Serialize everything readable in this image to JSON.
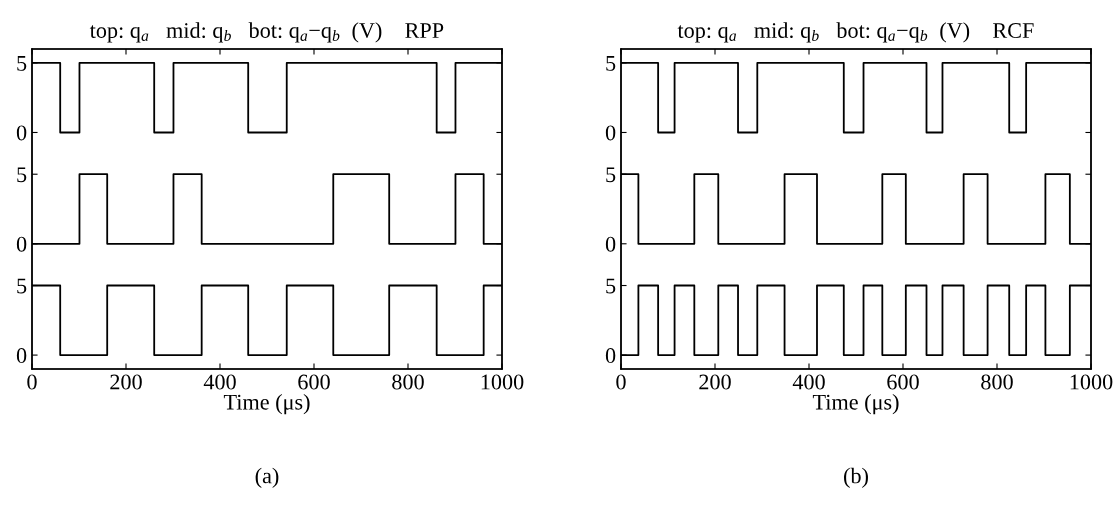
{
  "chart_data": [
    {
      "type": "step",
      "title": "top: q$_{a}$   mid: q$_{b}$   bot: q$_{a}$−q$_{b}$  (V)    RPP",
      "xlabel": "Time (μs)",
      "annotations": [
        "(a)"
      ],
      "xlim": [
        0,
        1000
      ],
      "xticks": [
        0,
        200,
        400,
        600,
        800,
        1000
      ],
      "ylim": [
        -1,
        22
      ],
      "yticks": [
        0,
        5
      ],
      "y2lim": [
        -9,
        14
      ],
      "y2ticks": [
        0,
        5
      ],
      "y3lim": [
        -17,
        6
      ],
      "y3ticks": [
        0,
        5
      ],
      "series": [
        {
          "axis": "y3",
          "color": "#000000",
          "x": [
            0,
            60,
            101,
            260,
            301,
            460,
            542,
            861,
            901,
            1000
          ],
          "values": [
            5,
            0,
            5,
            0,
            5,
            0,
            5,
            0,
            5,
            5
          ]
        },
        {
          "axis": "y2",
          "color": "#000000",
          "x": [
            0,
            101,
            160,
            301,
            361,
            641,
            760,
            901,
            961,
            1000
          ],
          "values": [
            0,
            5,
            0,
            5,
            0,
            5,
            0,
            5,
            0,
            0
          ]
        },
        {
          "axis": "y",
          "color": "#000000",
          "x": [
            0,
            60,
            160,
            260,
            361,
            460,
            542,
            641,
            760,
            861,
            961,
            1000
          ],
          "values": [
            5,
            0,
            5,
            0,
            5,
            0,
            5,
            0,
            5,
            0,
            5,
            5
          ]
        }
      ]
    },
    {
      "type": "step",
      "title": "top: q$_{a}$   mid: q$_{b}$   bot: q$_{a}$−q$_{b}$  (V)    RCF",
      "xlabel": "Time (μs)",
      "annotations": [
        "(b)"
      ],
      "xlim": [
        0,
        1000
      ],
      "xticks": [
        0,
        200,
        400,
        600,
        800,
        1000
      ],
      "ylim": [
        -1,
        22
      ],
      "yticks": [
        0,
        5
      ],
      "y2lim": [
        -9,
        14
      ],
      "y2ticks": [
        0,
        5
      ],
      "y3lim": [
        -17,
        6
      ],
      "y3ticks": [
        0,
        5
      ],
      "series": [
        {
          "axis": "y3",
          "color": "#000000",
          "x": [
            0,
            79,
            114,
            249,
            290,
            474,
            516,
            650,
            684,
            826,
            862,
            1000
          ],
          "values": [
            5,
            0,
            5,
            0,
            5,
            0,
            5,
            0,
            5,
            0,
            5,
            5
          ]
        },
        {
          "axis": "y2",
          "color": "#000000",
          "x": [
            0,
            37,
            156,
            207,
            348,
            417,
            556,
            606,
            729,
            780,
            903,
            955,
            1000
          ],
          "values": [
            5,
            0,
            5,
            0,
            5,
            0,
            5,
            0,
            5,
            0,
            5,
            0,
            0
          ]
        },
        {
          "axis": "y",
          "color": "#000000",
          "x": [
            0,
            37,
            79,
            114,
            156,
            207,
            249,
            290,
            348,
            417,
            474,
            516,
            556,
            606,
            650,
            684,
            729,
            780,
            826,
            862,
            903,
            955,
            1000
          ],
          "values": [
            0,
            5,
            0,
            5,
            0,
            5,
            0,
            5,
            0,
            5,
            0,
            5,
            0,
            5,
            0,
            5,
            0,
            5,
            0,
            5,
            0,
            5,
            5
          ]
        }
      ]
    }
  ]
}
